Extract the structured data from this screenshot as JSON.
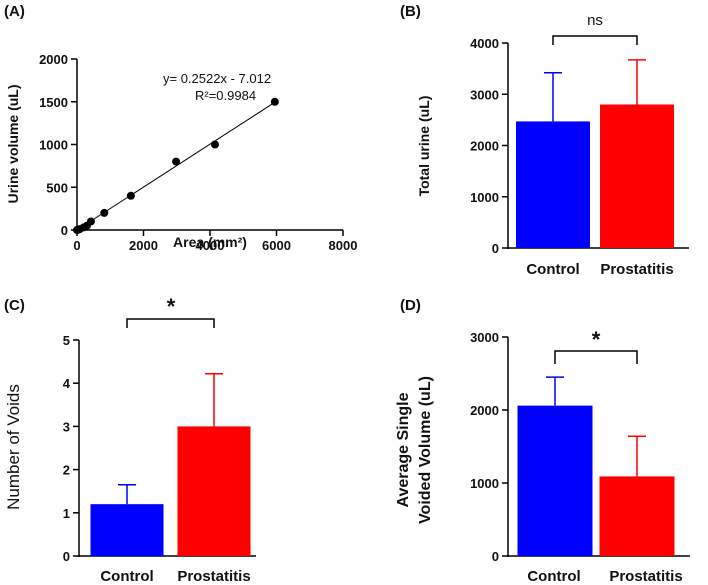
{
  "chart_data": [
    {
      "type": "scatter",
      "panel_label": "(A)",
      "xlabel": "Area (mm²)",
      "ylabel": "Urine volume (uL)",
      "xlim": [
        0,
        8000
      ],
      "ylim": [
        0,
        2000
      ],
      "xticks": [
        0,
        2000,
        4000,
        6000,
        8000
      ],
      "yticks": [
        0,
        500,
        1000,
        1500,
        2000
      ],
      "points": [
        {
          "x": 0,
          "y": 0
        },
        {
          "x": 40,
          "y": 5
        },
        {
          "x": 80,
          "y": 10
        },
        {
          "x": 200,
          "y": 30
        },
        {
          "x": 300,
          "y": 50
        },
        {
          "x": 420,
          "y": 100
        },
        {
          "x": 820,
          "y": 200
        },
        {
          "x": 1620,
          "y": 400
        },
        {
          "x": 2980,
          "y": 800
        },
        {
          "x": 4150,
          "y": 1000
        },
        {
          "x": 5950,
          "y": 1500
        }
      ],
      "fit": {
        "slope": 0.2522,
        "intercept": -7.012,
        "x_range": [
          0,
          6000
        ]
      },
      "equation": "y= 0.2522x - 7.012",
      "r_squared": "R²=0.9984"
    },
    {
      "type": "bar",
      "panel_label": "(B)",
      "ylabel": "Total urine (uL)",
      "categories": [
        "Control",
        "Prostatitis"
      ],
      "values": [
        2470,
        2800
      ],
      "errors": [
        950,
        870
      ],
      "colors": [
        "#0000ff",
        "#ff0000"
      ],
      "ylim": [
        0,
        4000
      ],
      "yticks": [
        0,
        1000,
        2000,
        3000,
        4000
      ],
      "significance": "ns"
    },
    {
      "type": "bar",
      "panel_label": "(C)",
      "ylabel": "Number of Voids",
      "categories": [
        "Control",
        "Prostatitis"
      ],
      "values": [
        1.2,
        3.0
      ],
      "errors": [
        0.45,
        1.22
      ],
      "colors": [
        "#0000ff",
        "#ff0000"
      ],
      "ylim": [
        0,
        5
      ],
      "yticks": [
        0,
        1,
        2,
        3,
        4,
        5
      ],
      "significance": "*"
    },
    {
      "type": "bar",
      "panel_label": "(D)",
      "ylabel": [
        "Average Single",
        "Voided Volume (uL)"
      ],
      "categories": [
        "Control",
        "Prostatitis"
      ],
      "values": [
        2060,
        1090
      ],
      "errors": [
        390,
        550
      ],
      "colors": [
        "#0000ff",
        "#ff0000"
      ],
      "ylim": [
        0,
        3000
      ],
      "yticks": [
        0,
        1000,
        2000,
        3000
      ],
      "significance": "*"
    }
  ]
}
